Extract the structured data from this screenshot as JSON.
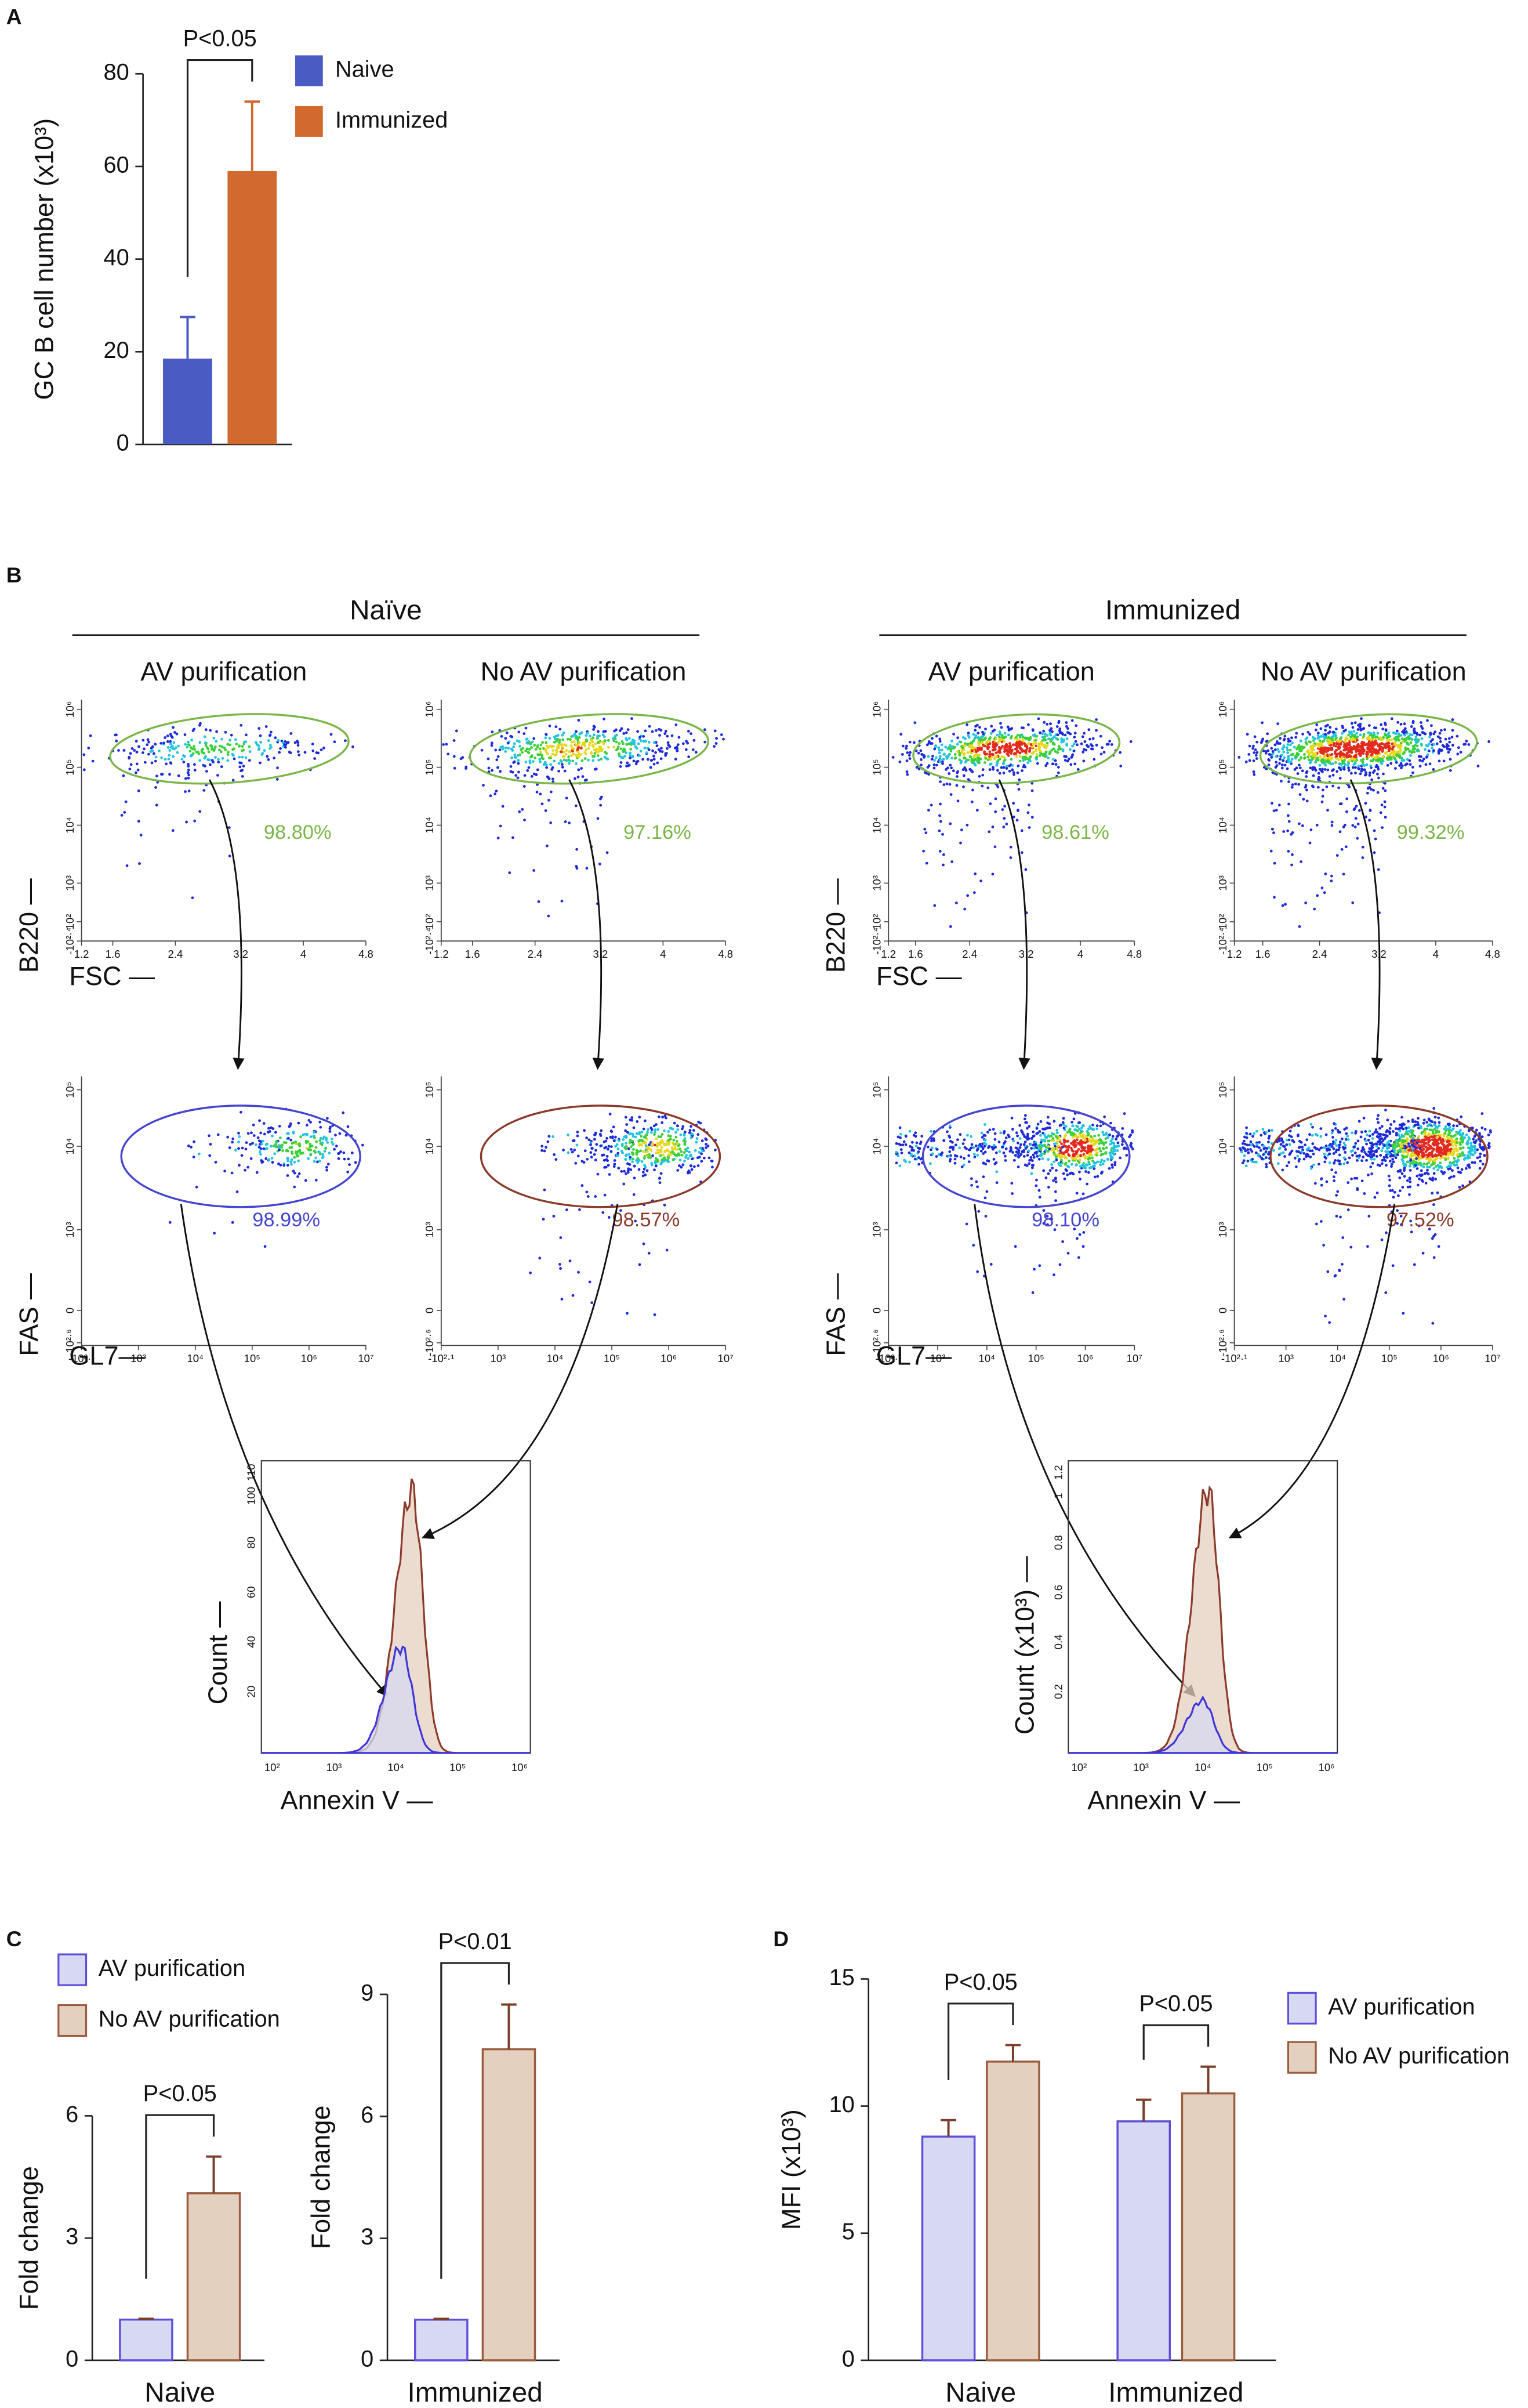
{
  "panel_labels": [
    "A",
    "B",
    "C",
    "D"
  ],
  "chart_data": [
    {
      "type": "bar",
      "ylabel": "GC B cell number (x10³)",
      "categories": [
        null
      ],
      "series": [
        {
          "name": "Naive",
          "color": "#4a5bc4",
          "edgecolor": "#4a5bc4",
          "values": [
            18.5
          ],
          "errors": [
            9
          ]
        },
        {
          "name": "Immunized",
          "color": "#d2692e",
          "edgecolor": "#d2692e",
          "values": [
            59
          ],
          "errors": [
            15
          ]
        }
      ],
      "ylim": [
        0,
        80
      ],
      "yticks": [
        0,
        20,
        40,
        60,
        80
      ],
      "annotations": [
        "P<0.05"
      ]
    },
    {
      "type": "bar",
      "ylabel": "Fold change",
      "categories": [
        "Naive"
      ],
      "series": [
        {
          "name": "AV purification",
          "color": "#d7d9f2",
          "edgecolor": "#5d4fd8",
          "values": [
            1
          ],
          "errors": [
            0.02
          ]
        },
        {
          "name": "No AV purification",
          "color": "#e4d0bf",
          "edgecolor": "#9a5b3e",
          "values": [
            4.1
          ],
          "errors": [
            0.9
          ]
        }
      ],
      "ylim": [
        0,
        6
      ],
      "yticks": [
        0,
        3,
        6
      ],
      "annotations": [
        "P<0.05"
      ]
    },
    {
      "type": "bar",
      "ylabel": "Fold change",
      "categories": [
        "Immunized"
      ],
      "series": [
        {
          "color": "#d7d9f2",
          "edgecolor": "#5d4fd8",
          "values": [
            1
          ],
          "errors": [
            0.02
          ]
        },
        {
          "color": "#e4d0bf",
          "edgecolor": "#9a5b3e",
          "values": [
            7.65
          ],
          "errors": [
            1.1
          ]
        }
      ],
      "ylim": [
        0,
        9
      ],
      "yticks": [
        0,
        3,
        6,
        9
      ],
      "annotations": [
        "P<0.01"
      ]
    },
    {
      "type": "bar",
      "ylabel": "MFI (x10³)",
      "categories": [
        "Naive",
        "Immunized"
      ],
      "series": [
        {
          "name": "AV purification",
          "color": "#d7d9f2",
          "edgecolor": "#5d4fd8",
          "values": [
            8.8,
            9.4
          ],
          "errors": [
            0.65,
            0.85
          ]
        },
        {
          "name": "No AV purification",
          "color": "#e4d0bf",
          "edgecolor": "#9a5b3e",
          "values": [
            11.75,
            10.5
          ],
          "errors": [
            0.65,
            1.05
          ]
        }
      ],
      "ylim": [
        0,
        15
      ],
      "yticks": [
        0,
        5,
        10,
        15
      ],
      "annotations": [
        "P<0.05",
        "P<0.05"
      ]
    }
  ],
  "panel_b": {
    "groups": [
      {
        "title": "Naïve",
        "columns": [
          "AV purification",
          "No AV purification"
        ],
        "gate_b220": [
          "98.80%",
          "97.16%"
        ],
        "gate_fas": [
          "98.99%",
          "98.57%"
        ],
        "hist_ylabel": "Count —",
        "hist_yticks": [
          "110",
          "100",
          "80",
          "60",
          "40",
          "20"
        ]
      },
      {
        "title": "Immunized",
        "columns": [
          "AV purification",
          "No AV purification"
        ],
        "gate_b220": [
          "98.61%",
          "99.32%"
        ],
        "gate_fas": [
          "98.10%",
          "97.52%"
        ],
        "hist_ylabel": "Count (x10³) —",
        "hist_yticks": [
          "1.2",
          "1",
          "0.8",
          "0.6",
          "0.4",
          "0.2"
        ]
      }
    ],
    "b220_label": "B220 —",
    "fsc_label": "FSC —",
    "fas_label": "FAS —",
    "gl7_label": "GL7—",
    "annexin_label": "Annexin V —",
    "b220_ticks": [
      "10⁶",
      "10⁵",
      "10⁴",
      "10³",
      "10²",
      "-10²·⁴"
    ],
    "fsc_ticks": [
      "1.2",
      "1.6",
      "2.4",
      "3.2",
      "4",
      "4.8"
    ],
    "fas_ticks": [
      "10⁵",
      "10⁴",
      "10³",
      "0",
      "-10²·⁶"
    ],
    "gl7_ticks": [
      "-10²·¹",
      "10³",
      "10⁴",
      "10⁵",
      "10⁶",
      "10⁷"
    ],
    "annexin_ticks": [
      "10²",
      "10³",
      "10⁴",
      "10⁵",
      "10⁶"
    ]
  }
}
